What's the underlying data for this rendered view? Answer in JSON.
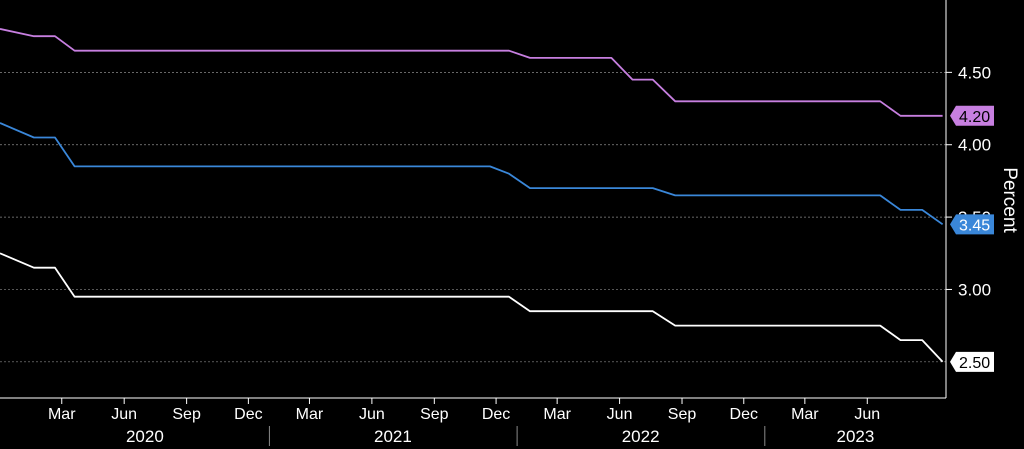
{
  "chart_data": {
    "type": "line",
    "ylabel": "Percent",
    "ylim": [
      2.25,
      5.0
    ],
    "y_ticks": [
      "3.00",
      "3.50",
      "4.00",
      "4.50"
    ],
    "xlim": [
      "2019-12-01",
      "2023-09-25"
    ],
    "month_ticks": [
      {
        "date": "2020-03-01",
        "label": "Mar"
      },
      {
        "date": "2020-06-01",
        "label": "Jun"
      },
      {
        "date": "2020-09-01",
        "label": "Sep"
      },
      {
        "date": "2020-12-01",
        "label": "Dec"
      },
      {
        "date": "2021-03-01",
        "label": "Mar"
      },
      {
        "date": "2021-06-01",
        "label": "Jun"
      },
      {
        "date": "2021-09-01",
        "label": "Sep"
      },
      {
        "date": "2021-12-01",
        "label": "Dec"
      },
      {
        "date": "2022-03-01",
        "label": "Mar"
      },
      {
        "date": "2022-06-01",
        "label": "Jun"
      },
      {
        "date": "2022-09-01",
        "label": "Sep"
      },
      {
        "date": "2022-12-01",
        "label": "Dec"
      },
      {
        "date": "2023-03-01",
        "label": "Mar"
      },
      {
        "date": "2023-06-01",
        "label": "Jun"
      }
    ],
    "year_labels": [
      {
        "label": "2020",
        "start": "2020-01-01",
        "end": "2020-12-31"
      },
      {
        "label": "2021",
        "start": "2021-01-01",
        "end": "2021-12-31"
      },
      {
        "label": "2022",
        "start": "2022-01-01",
        "end": "2022-12-31"
      },
      {
        "label": "2023",
        "start": "2023-01-01",
        "end": "2023-09-25"
      }
    ],
    "grid": true,
    "series": [
      {
        "color": "#c77fe0",
        "last_label": "4.20",
        "points": [
          [
            "2019-12-01",
            4.8
          ],
          [
            "2020-01-20",
            4.75
          ],
          [
            "2020-02-20",
            4.75
          ],
          [
            "2020-03-20",
            4.65
          ],
          [
            "2021-12-20",
            4.65
          ],
          [
            "2022-01-20",
            4.6
          ],
          [
            "2022-05-20",
            4.6
          ],
          [
            "2022-06-20",
            4.45
          ],
          [
            "2022-07-20",
            4.45
          ],
          [
            "2022-08-22",
            4.3
          ],
          [
            "2023-06-20",
            4.3
          ],
          [
            "2023-07-20",
            4.2
          ],
          [
            "2023-09-20",
            4.2
          ]
        ]
      },
      {
        "color": "#3a87d9",
        "last_label": "3.45",
        "points": [
          [
            "2019-12-01",
            4.15
          ],
          [
            "2020-01-20",
            4.05
          ],
          [
            "2020-02-20",
            4.05
          ],
          [
            "2020-03-20",
            3.85
          ],
          [
            "2021-11-22",
            3.85
          ],
          [
            "2021-12-20",
            3.8
          ],
          [
            "2022-01-20",
            3.7
          ],
          [
            "2022-07-20",
            3.7
          ],
          [
            "2022-08-22",
            3.65
          ],
          [
            "2023-06-20",
            3.65
          ],
          [
            "2023-07-20",
            3.55
          ],
          [
            "2023-08-21",
            3.55
          ],
          [
            "2023-09-20",
            3.45
          ]
        ]
      },
      {
        "color": "#ffffff",
        "last_label": "2.50",
        "points": [
          [
            "2019-12-01",
            3.25
          ],
          [
            "2020-01-20",
            3.15
          ],
          [
            "2020-02-20",
            3.15
          ],
          [
            "2020-03-20",
            2.95
          ],
          [
            "2021-12-20",
            2.95
          ],
          [
            "2022-01-20",
            2.85
          ],
          [
            "2022-07-20",
            2.85
          ],
          [
            "2022-08-22",
            2.75
          ],
          [
            "2023-06-20",
            2.75
          ],
          [
            "2023-07-20",
            2.65
          ],
          [
            "2023-08-21",
            2.65
          ],
          [
            "2023-09-20",
            2.5
          ]
        ]
      }
    ]
  }
}
